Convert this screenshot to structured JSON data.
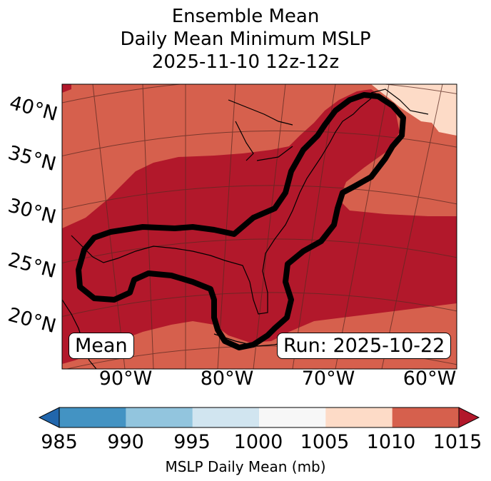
{
  "title": {
    "line1": "Ensemble Mean",
    "line2": "Daily Mean Minimum MSLP",
    "line3": "2025-11-10 12z-12z"
  },
  "map": {
    "lat_labels": [
      "40°N",
      "35°N",
      "30°N",
      "25°N",
      "20°N"
    ],
    "lon_labels": [
      "90°W",
      "80°W",
      "70°W",
      "60°W"
    ],
    "legend_text": "Mean",
    "run_text": "Run: 2025-10-22",
    "colors": {
      "mslp_1010_1015": "#d6604d",
      "mslp_below_1010_band": "#b2182b",
      "mslp_1005_1010": "#fddbc7",
      "contour": "#000000"
    }
  },
  "colorbar": {
    "ticks": [
      "985",
      "990",
      "995",
      "1000",
      "1005",
      "1010",
      "1015"
    ],
    "label": "MSLP Daily Mean (mb)",
    "colors": [
      "#2166ac",
      "#4393c3",
      "#92c5de",
      "#d1e5f0",
      "#f7f7f7",
      "#fddbc7",
      "#d6604d",
      "#b2182b"
    ]
  }
}
